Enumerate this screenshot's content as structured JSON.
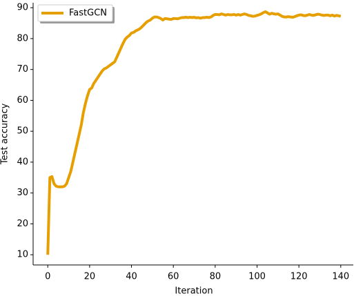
{
  "chart_data": {
    "type": "line",
    "xlabel": "Iteration",
    "ylabel": "Test accuracy",
    "x": [
      0,
      1,
      2,
      3,
      4,
      5,
      6,
      7,
      8,
      9,
      10,
      11,
      12,
      13,
      14,
      15,
      16,
      17,
      18,
      19,
      20,
      21,
      22,
      23,
      24,
      25,
      26,
      27,
      28,
      29,
      30,
      31,
      32,
      33,
      34,
      35,
      36,
      37,
      38,
      39,
      40,
      41,
      42,
      43,
      44,
      45,
      46,
      47,
      48,
      49,
      50,
      51,
      52,
      53,
      54,
      55,
      56,
      57,
      58,
      59,
      60,
      61,
      62,
      63,
      64,
      65,
      66,
      67,
      68,
      69,
      70,
      71,
      72,
      73,
      74,
      75,
      76,
      77,
      78,
      79,
      80,
      81,
      82,
      83,
      84,
      85,
      86,
      87,
      88,
      89,
      90,
      91,
      92,
      93,
      94,
      95,
      96,
      97,
      98,
      99,
      100,
      101,
      102,
      103,
      104,
      105,
      106,
      107,
      108,
      109,
      110,
      111,
      112,
      113,
      114,
      115,
      116,
      117,
      118,
      119,
      120,
      121,
      122,
      123,
      124,
      125,
      126,
      127,
      128,
      129,
      130,
      131,
      132,
      133,
      134,
      135,
      136,
      137,
      138,
      139,
      140
    ],
    "series": [
      {
        "name": "FastGCN",
        "color": "#e69f00",
        "values": [
          10,
          35,
          35.3,
          33,
          32.2,
          32,
          32,
          32,
          32.2,
          33,
          35,
          37,
          40,
          43,
          46,
          49,
          52,
          56,
          59,
          61.5,
          63.5,
          64,
          65.5,
          66.5,
          67.5,
          68.5,
          69.5,
          70.2,
          70.5,
          71,
          71.5,
          72,
          72.5,
          74,
          75.5,
          77,
          78.5,
          79.8,
          80.5,
          81,
          81.8,
          82,
          82.5,
          82.8,
          83.2,
          83.8,
          84.5,
          85.2,
          85.7,
          86,
          86.6,
          87,
          87,
          86.8,
          86.5,
          86,
          86.5,
          86.4,
          86.3,
          86.2,
          86.5,
          86.5,
          86.4,
          86.6,
          86.8,
          86.8,
          86.9,
          86.8,
          86.9,
          86.8,
          86.9,
          86.7,
          86.8,
          86.6,
          86.8,
          86.8,
          86.9,
          86.8,
          87,
          87.5,
          87.8,
          87.8,
          87.7,
          88,
          87.8,
          87.6,
          87.8,
          87.7,
          87.7,
          87.8,
          87.6,
          87.8,
          87.6,
          87.8,
          88,
          87.8,
          87.5,
          87.4,
          87.2,
          87.3,
          87.5,
          87.7,
          88,
          88.4,
          88.7,
          88.3,
          87.9,
          88.2,
          88,
          87.9,
          88,
          87.6,
          87.2,
          87,
          87,
          87.1,
          87,
          86.9,
          87.1,
          87.4,
          87.6,
          87.7,
          87.5,
          87.4,
          87.6,
          87.8,
          87.6,
          87.5,
          87.7,
          87.9,
          87.8,
          87.6,
          87.5,
          87.6,
          87.6,
          87.4,
          87.6,
          87.3,
          87.5,
          87.4,
          87.2
        ]
      }
    ],
    "xlim": [
      -7,
      146
    ],
    "ylim": [
      6.7,
      91.6
    ],
    "xticks": [
      0,
      20,
      40,
      60,
      80,
      100,
      120,
      140
    ],
    "yticks": [
      10,
      20,
      30,
      40,
      50,
      60,
      70,
      80,
      90
    ],
    "legend": "upper left",
    "grid": false
  }
}
